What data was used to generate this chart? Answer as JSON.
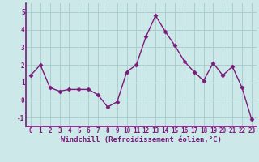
{
  "x": [
    0,
    1,
    2,
    3,
    4,
    5,
    6,
    7,
    8,
    9,
    10,
    11,
    12,
    13,
    14,
    15,
    16,
    17,
    18,
    19,
    20,
    21,
    22,
    23
  ],
  "y": [
    1.4,
    2.0,
    0.7,
    0.5,
    0.6,
    0.6,
    0.6,
    0.3,
    -0.4,
    -0.1,
    1.6,
    2.0,
    3.6,
    4.8,
    3.9,
    3.1,
    2.2,
    1.6,
    1.1,
    2.1,
    1.4,
    1.9,
    0.7,
    -1.1
  ],
  "line_color": "#7b1a7b",
  "marker": "D",
  "marker_size": 2.5,
  "bg_color": "#cce8e8",
  "grid_color": "#aacece",
  "xlabel": "Windchill (Refroidissement éolien,°C)",
  "xlabel_color": "#7b1a7b",
  "tick_color": "#7b1a7b",
  "ylim": [
    -1.5,
    5.5
  ],
  "xlim": [
    -0.5,
    23.5
  ],
  "yticks": [
    -1,
    0,
    1,
    2,
    3,
    4,
    5
  ],
  "xticks": [
    0,
    1,
    2,
    3,
    4,
    5,
    6,
    7,
    8,
    9,
    10,
    11,
    12,
    13,
    14,
    15,
    16,
    17,
    18,
    19,
    20,
    21,
    22,
    23
  ],
  "spine_color": "#7b1a7b",
  "label_fontsize": 6.5,
  "tick_fontsize": 5.5,
  "linewidth": 1.0
}
